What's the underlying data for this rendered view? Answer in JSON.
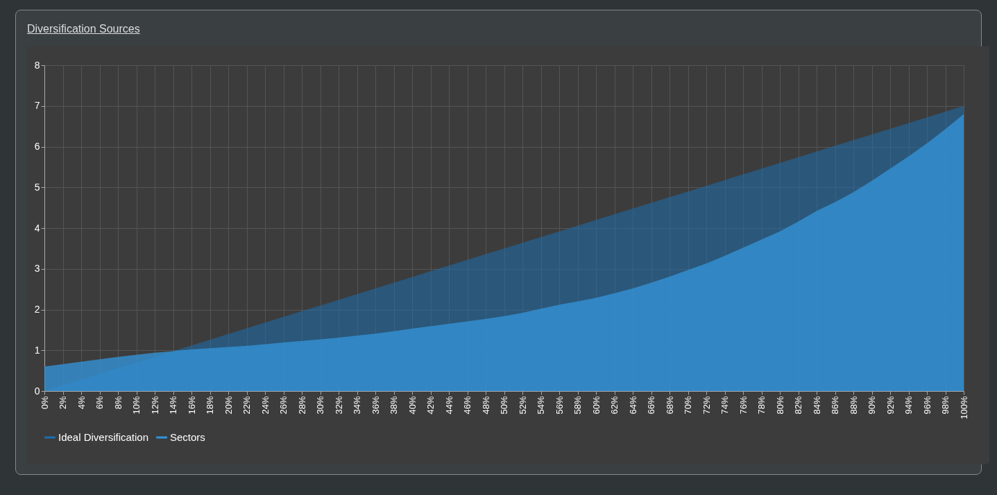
{
  "chart_data": {
    "type": "area",
    "title": "Diversification Sources",
    "categories": [
      "0%",
      "2%",
      "4%",
      "6%",
      "8%",
      "10%",
      "12%",
      "14%",
      "16%",
      "18%",
      "20%",
      "22%",
      "24%",
      "26%",
      "28%",
      "30%",
      "32%",
      "34%",
      "36%",
      "38%",
      "40%",
      "42%",
      "44%",
      "46%",
      "48%",
      "50%",
      "52%",
      "54%",
      "56%",
      "58%",
      "60%",
      "62%",
      "64%",
      "66%",
      "68%",
      "70%",
      "72%",
      "74%",
      "76%",
      "78%",
      "80%",
      "82%",
      "84%",
      "86%",
      "88%",
      "90%",
      "92%",
      "94%",
      "96%",
      "98%",
      "100%"
    ],
    "series": [
      {
        "name": "Ideal Diversification",
        "color": "#1c6ead",
        "values": [
          0,
          0.14,
          0.28,
          0.42,
          0.56,
          0.7,
          0.84,
          0.98,
          1.12,
          1.26,
          1.4,
          1.54,
          1.68,
          1.82,
          1.96,
          2.1,
          2.24,
          2.38,
          2.52,
          2.66,
          2.8,
          2.94,
          3.08,
          3.22,
          3.36,
          3.5,
          3.64,
          3.78,
          3.92,
          4.06,
          4.2,
          4.34,
          4.48,
          4.62,
          4.76,
          4.9,
          5.04,
          5.18,
          5.32,
          5.46,
          5.6,
          5.74,
          5.88,
          6.02,
          6.16,
          6.3,
          6.44,
          6.58,
          6.72,
          6.86,
          7
        ]
      },
      {
        "name": "Sectors",
        "color": "#3392d6",
        "values": [
          0.6,
          0.66,
          0.72,
          0.78,
          0.84,
          0.89,
          0.94,
          0.98,
          1.02,
          1.05,
          1.08,
          1.11,
          1.15,
          1.19,
          1.23,
          1.27,
          1.31,
          1.36,
          1.41,
          1.47,
          1.53,
          1.59,
          1.65,
          1.71,
          1.77,
          1.84,
          1.92,
          2.02,
          2.12,
          2.2,
          2.29,
          2.4,
          2.52,
          2.66,
          2.81,
          2.97,
          3.13,
          3.32,
          3.52,
          3.72,
          3.92,
          4.16,
          4.42,
          4.64,
          4.88,
          5.16,
          5.46,
          5.76,
          6.08,
          6.43,
          6.8
        ]
      }
    ],
    "ylim": [
      0,
      8
    ],
    "yticks": [
      0,
      1,
      2,
      3,
      4,
      5,
      6,
      7,
      8
    ],
    "grid": true,
    "legend": "bottom"
  }
}
